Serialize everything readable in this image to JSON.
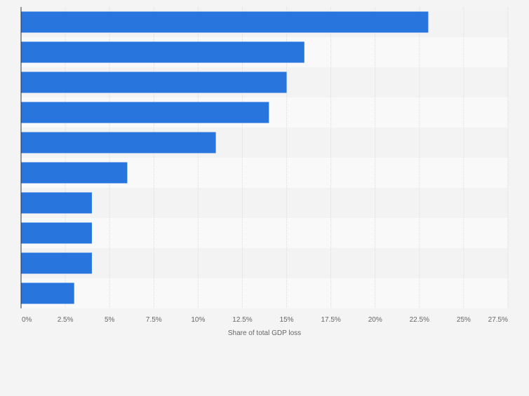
{
  "chart_data": {
    "type": "bar",
    "orientation": "horizontal",
    "categories": [
      "",
      "",
      "",
      "",
      "",
      "",
      "",
      "",
      "",
      ""
    ],
    "values": [
      23,
      16,
      15,
      14,
      11,
      6,
      4,
      4,
      4,
      3
    ],
    "xlabel": "Share of total GDP loss",
    "ylabel": "",
    "xlim": [
      0,
      27.5
    ],
    "x_ticks": [
      "0%",
      "2.5%",
      "5%",
      "7.5%",
      "10%",
      "12.5%",
      "15%",
      "17.5%",
      "20%",
      "22.5%",
      "25%",
      "27.5%"
    ],
    "grid": true,
    "legend": "none",
    "colors": {
      "bar": "#2876dd",
      "band_light": "#f9f9f9",
      "band_dark": "#f3f3f3",
      "gridline": "#dcdcdc",
      "axis": "#333333",
      "text": "#666666"
    }
  }
}
